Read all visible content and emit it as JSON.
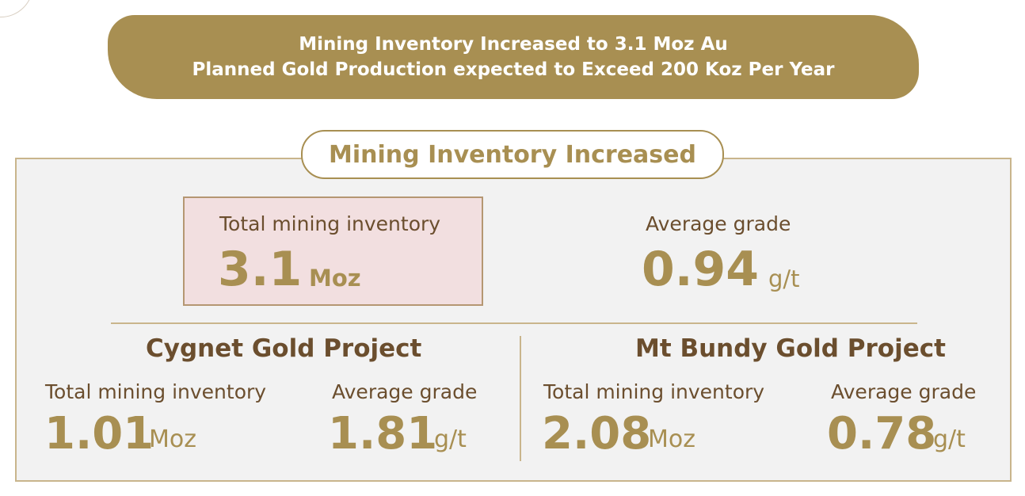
{
  "banner": {
    "line1": "Mining Inventory Increased to 3.1 Moz Au",
    "line2": "Planned Gold Production expected to Exceed 200 Koz Per Year"
  },
  "section": {
    "title": "Mining Inventory Increased"
  },
  "summary": {
    "total": {
      "label": "Total mining inventory",
      "value": "3.1",
      "unit": "Moz"
    },
    "grade": {
      "label": "Average grade",
      "value": "0.94",
      "unit": "g/t"
    }
  },
  "projects": [
    {
      "name": "Cygnet Gold Project",
      "total": {
        "label": "Total mining inventory",
        "value": "1.01",
        "unit": "Moz"
      },
      "grade": {
        "label": "Average grade",
        "value": "1.81",
        "unit": "g/t"
      }
    },
    {
      "name": "Mt Bundy Gold Project",
      "total": {
        "label": "Total mining inventory",
        "value": "2.08",
        "unit": "Moz"
      },
      "grade": {
        "label": "Average grade",
        "value": "0.78",
        "unit": "g/t"
      }
    }
  ],
  "colors": {
    "gold": "#a88f52",
    "brown_text": "#6b4e2e",
    "highlight_bg": "#f2dfe0",
    "panel_bg": "#f2f2f2"
  }
}
